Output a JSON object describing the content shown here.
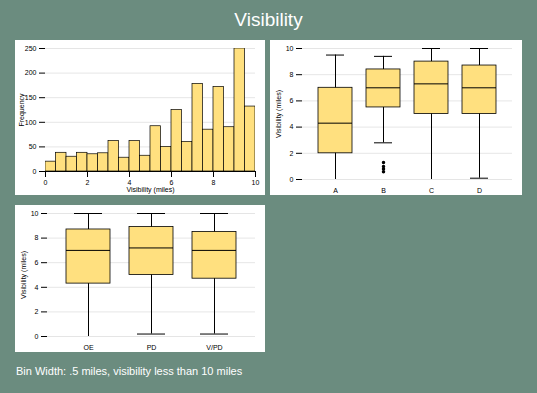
{
  "title": "Visibility",
  "caption": "Bin Width: .5 miles, visibility less than 10 miles",
  "chart_data": [
    {
      "type": "histogram",
      "bins": [
        0,
        0.5,
        1,
        1.5,
        2,
        2.5,
        3,
        3.5,
        4,
        4.5,
        5,
        5.5,
        6,
        6.5,
        7,
        7.5,
        8,
        8.5,
        9,
        9.5,
        10
      ],
      "counts": [
        20,
        38,
        30,
        38,
        35,
        37,
        62,
        28,
        62,
        32,
        92,
        50,
        125,
        60,
        178,
        85,
        172,
        90,
        250,
        132
      ],
      "color": "#ffe07f",
      "xlabel": "Visibility (miles)",
      "ylabel": "Frequency",
      "xlim": [
        0,
        10
      ],
      "xticks": [
        0,
        2,
        4,
        6,
        8,
        10
      ],
      "ylim": [
        0,
        250
      ],
      "yticks": [
        0,
        50,
        100,
        150,
        200,
        250
      ],
      "grid": true
    },
    {
      "type": "box",
      "categories": [
        "A",
        "B",
        "C",
        "D"
      ],
      "boxes": [
        {
          "min": 0,
          "q1": 2,
          "median": 4.3,
          "q3": 7,
          "max": 9.5,
          "outliers": []
        },
        {
          "min": 2.8,
          "q1": 5.5,
          "median": 7,
          "q3": 8.4,
          "max": 9.4,
          "outliers": [
            1.3,
            1.0,
            0.8,
            0.6
          ]
        },
        {
          "min": 0,
          "q1": 5,
          "median": 7.3,
          "q3": 9,
          "max": 10,
          "outliers": []
        },
        {
          "min": 0.1,
          "q1": 5,
          "median": 7,
          "q3": 8.7,
          "max": 10,
          "outliers": []
        }
      ],
      "color": "#ffe07f",
      "ylabel": "Visibility (miles)",
      "ylim": [
        0,
        10
      ],
      "yticks": [
        0,
        2,
        4,
        6,
        8,
        10
      ],
      "grid": true
    },
    {
      "type": "box",
      "categories": [
        "OE",
        "PD",
        "V/PD"
      ],
      "boxes": [
        {
          "min": 0,
          "q1": 4.3,
          "median": 7,
          "q3": 8.7,
          "max": 10,
          "outliers": []
        },
        {
          "min": 0.2,
          "q1": 5,
          "median": 7.2,
          "q3": 8.9,
          "max": 10,
          "outliers": []
        },
        {
          "min": 0.2,
          "q1": 4.7,
          "median": 7,
          "q3": 8.5,
          "max": 10,
          "outliers": []
        }
      ],
      "color": "#ffe07f",
      "ylabel": "Visibility (miles)",
      "ylim": [
        0,
        10
      ],
      "yticks": [
        0,
        2,
        4,
        6,
        8,
        10
      ],
      "grid": true
    }
  ]
}
